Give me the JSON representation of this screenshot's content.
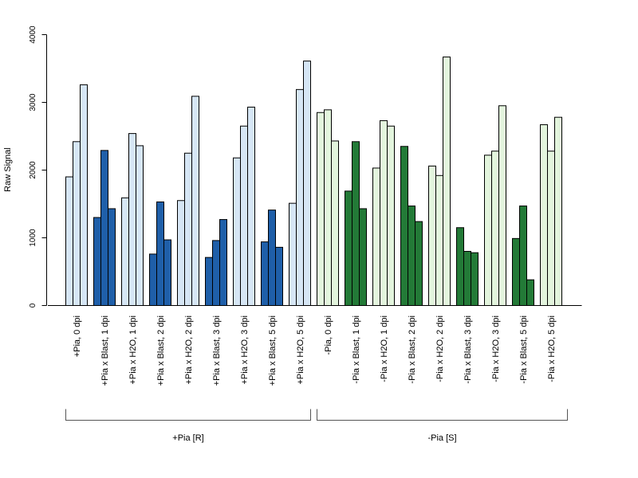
{
  "chart_data": {
    "type": "bar",
    "ylabel": "Raw Signal",
    "ylim": [
      0,
      4000
    ],
    "yticks": [
      0,
      1000,
      2000,
      3000,
      4000
    ],
    "bars_per_category": 3,
    "categories": [
      "+Pia, 0 dpi",
      "+Pia x Blast, 1 dpi",
      "+Pia x H2O, 1 dpi",
      "+Pia x Blast, 2 dpi",
      "+Pia x H2O, 2 dpi",
      "+Pia x Blast, 3 dpi",
      "+Pia x H2O, 3 dpi",
      "+Pia x Blast, 5 dpi",
      "+Pia x H2O, 5 dpi",
      "-Pia, 0 dpi",
      "-Pia x Blast, 1 dpi",
      "-Pia x H2O, 1 dpi",
      "-Pia x Blast, 2 dpi",
      "-Pia x H2O, 2 dpi",
      "-Pia x Blast, 3 dpi",
      "-Pia x H2O, 3 dpi",
      "-Pia x Blast, 5 dpi",
      "-Pia x H2O, 5 dpi"
    ],
    "values": [
      [
        1900,
        2420,
        3260
      ],
      [
        1300,
        2290,
        1430
      ],
      [
        1590,
        2540,
        2360
      ],
      [
        760,
        1530,
        970
      ],
      [
        1550,
        2250,
        3090
      ],
      [
        710,
        960,
        1270
      ],
      [
        2180,
        2650,
        2930
      ],
      [
        940,
        1410,
        860
      ],
      [
        1510,
        3190,
        3610
      ],
      [
        2850,
        2890,
        2430
      ],
      [
        1690,
        2420,
        1430
      ],
      [
        2030,
        2730,
        2650
      ],
      [
        2350,
        1470,
        1240
      ],
      [
        2060,
        1920,
        3670
      ],
      [
        1150,
        800,
        780
      ],
      [
        2220,
        2280,
        2950
      ],
      [
        990,
        1470,
        380
      ],
      [
        2670,
        2280,
        2780
      ]
    ],
    "colors": [
      "#d6e6f5",
      "#1f5fa9",
      "#d6e6f5",
      "#1f5fa9",
      "#d6e6f5",
      "#1f5fa9",
      "#d6e6f5",
      "#1f5fa9",
      "#d6e6f5",
      "#e3f5dd",
      "#237a37",
      "#e3f5dd",
      "#237a37",
      "#e3f5dd",
      "#237a37",
      "#e3f5dd",
      "#237a37",
      "#e3f5dd"
    ],
    "groups": [
      {
        "label": "+Pia [R]",
        "first": 0,
        "last": 8
      },
      {
        "label": "-Pia [S]",
        "first": 9,
        "last": 17
      }
    ],
    "grid": false
  }
}
